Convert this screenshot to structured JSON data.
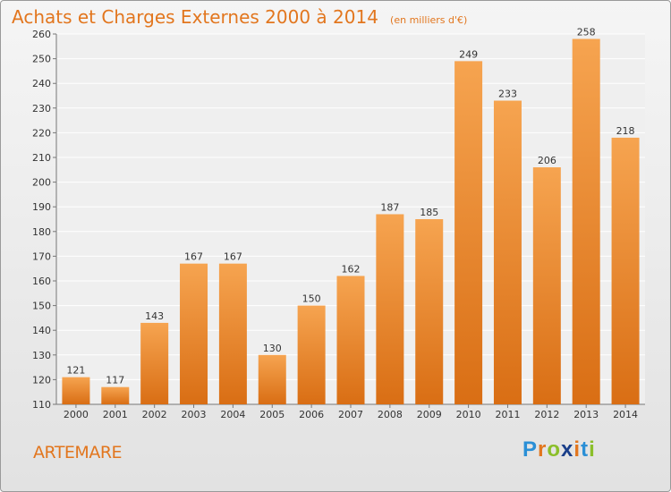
{
  "title": "Achats et Charges Externes 2000 à 2014",
  "subtitle": "(en milliers d'€)",
  "town": "ARTEMARE",
  "logo_text": "Proxiti",
  "colors": {
    "accent": "#e2761e",
    "bar_top": "#f6a450",
    "bar_bottom": "#d96e14",
    "logo_letters": [
      "#2a8fd6",
      "#e2761e",
      "#8bbf2a",
      "#1a3f8a",
      "#e2761e",
      "#2a8fd6",
      "#8bbf2a"
    ]
  },
  "chart_data": {
    "type": "bar",
    "categories": [
      "2000",
      "2001",
      "2002",
      "2003",
      "2004",
      "2005",
      "2006",
      "2007",
      "2008",
      "2009",
      "2010",
      "2011",
      "2012",
      "2013",
      "2014"
    ],
    "values": [
      121,
      117,
      143,
      167,
      167,
      130,
      150,
      162,
      187,
      185,
      249,
      233,
      206,
      258,
      218
    ],
    "ylim": [
      110,
      260
    ],
    "yticks": [
      110,
      120,
      130,
      140,
      150,
      160,
      170,
      180,
      190,
      200,
      210,
      220,
      230,
      240,
      250,
      260
    ],
    "grid": true,
    "data_labels": true
  }
}
